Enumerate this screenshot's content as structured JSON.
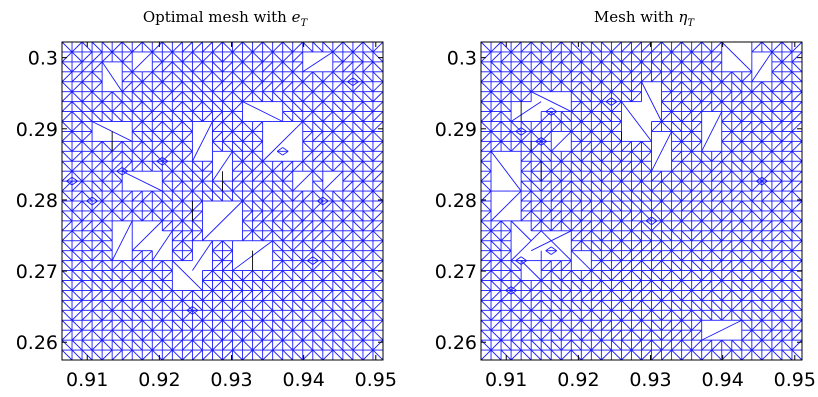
{
  "panels": [
    {
      "title": "Optimal mesh with e_T",
      "title_main": "Optimal mesh with ",
      "title_var": "e",
      "title_sub": "T",
      "x_ticks": [
        0.91,
        0.92,
        0.93,
        0.94,
        0.95
      ],
      "x_tick_labels": [
        "0.91",
        "0.92",
        "0.93",
        "0.94",
        "0.95"
      ],
      "y_ticks": [
        0.26,
        0.27,
        0.28,
        0.29,
        0.3
      ],
      "y_tick_labels": [
        "0.26",
        "0.27",
        "0.28",
        "0.29",
        "0.3"
      ],
      "xlim": [
        0.9065,
        0.951
      ],
      "ylim": [
        0.2575,
        0.3022
      ],
      "seed": 17
    },
    {
      "title": "Mesh with η_T",
      "title_main": "Mesh with ",
      "title_var": "η",
      "title_sub": "T",
      "x_ticks": [
        0.91,
        0.92,
        0.93,
        0.94,
        0.95
      ],
      "x_tick_labels": [
        "0.91",
        "0.92",
        "0.93",
        "0.94",
        "0.95"
      ],
      "y_ticks": [
        0.26,
        0.27,
        0.28,
        0.29,
        0.3
      ],
      "y_tick_labels": [
        "0.26",
        "0.27",
        "0.28",
        "0.29",
        "0.3"
      ],
      "xlim": [
        0.9065,
        0.951
      ],
      "ylim": [
        0.2575,
        0.3022
      ],
      "seed": 53
    }
  ],
  "colors": {
    "mesh": "#1a1aff",
    "frame": "#000000",
    "background": "#ffffff"
  }
}
